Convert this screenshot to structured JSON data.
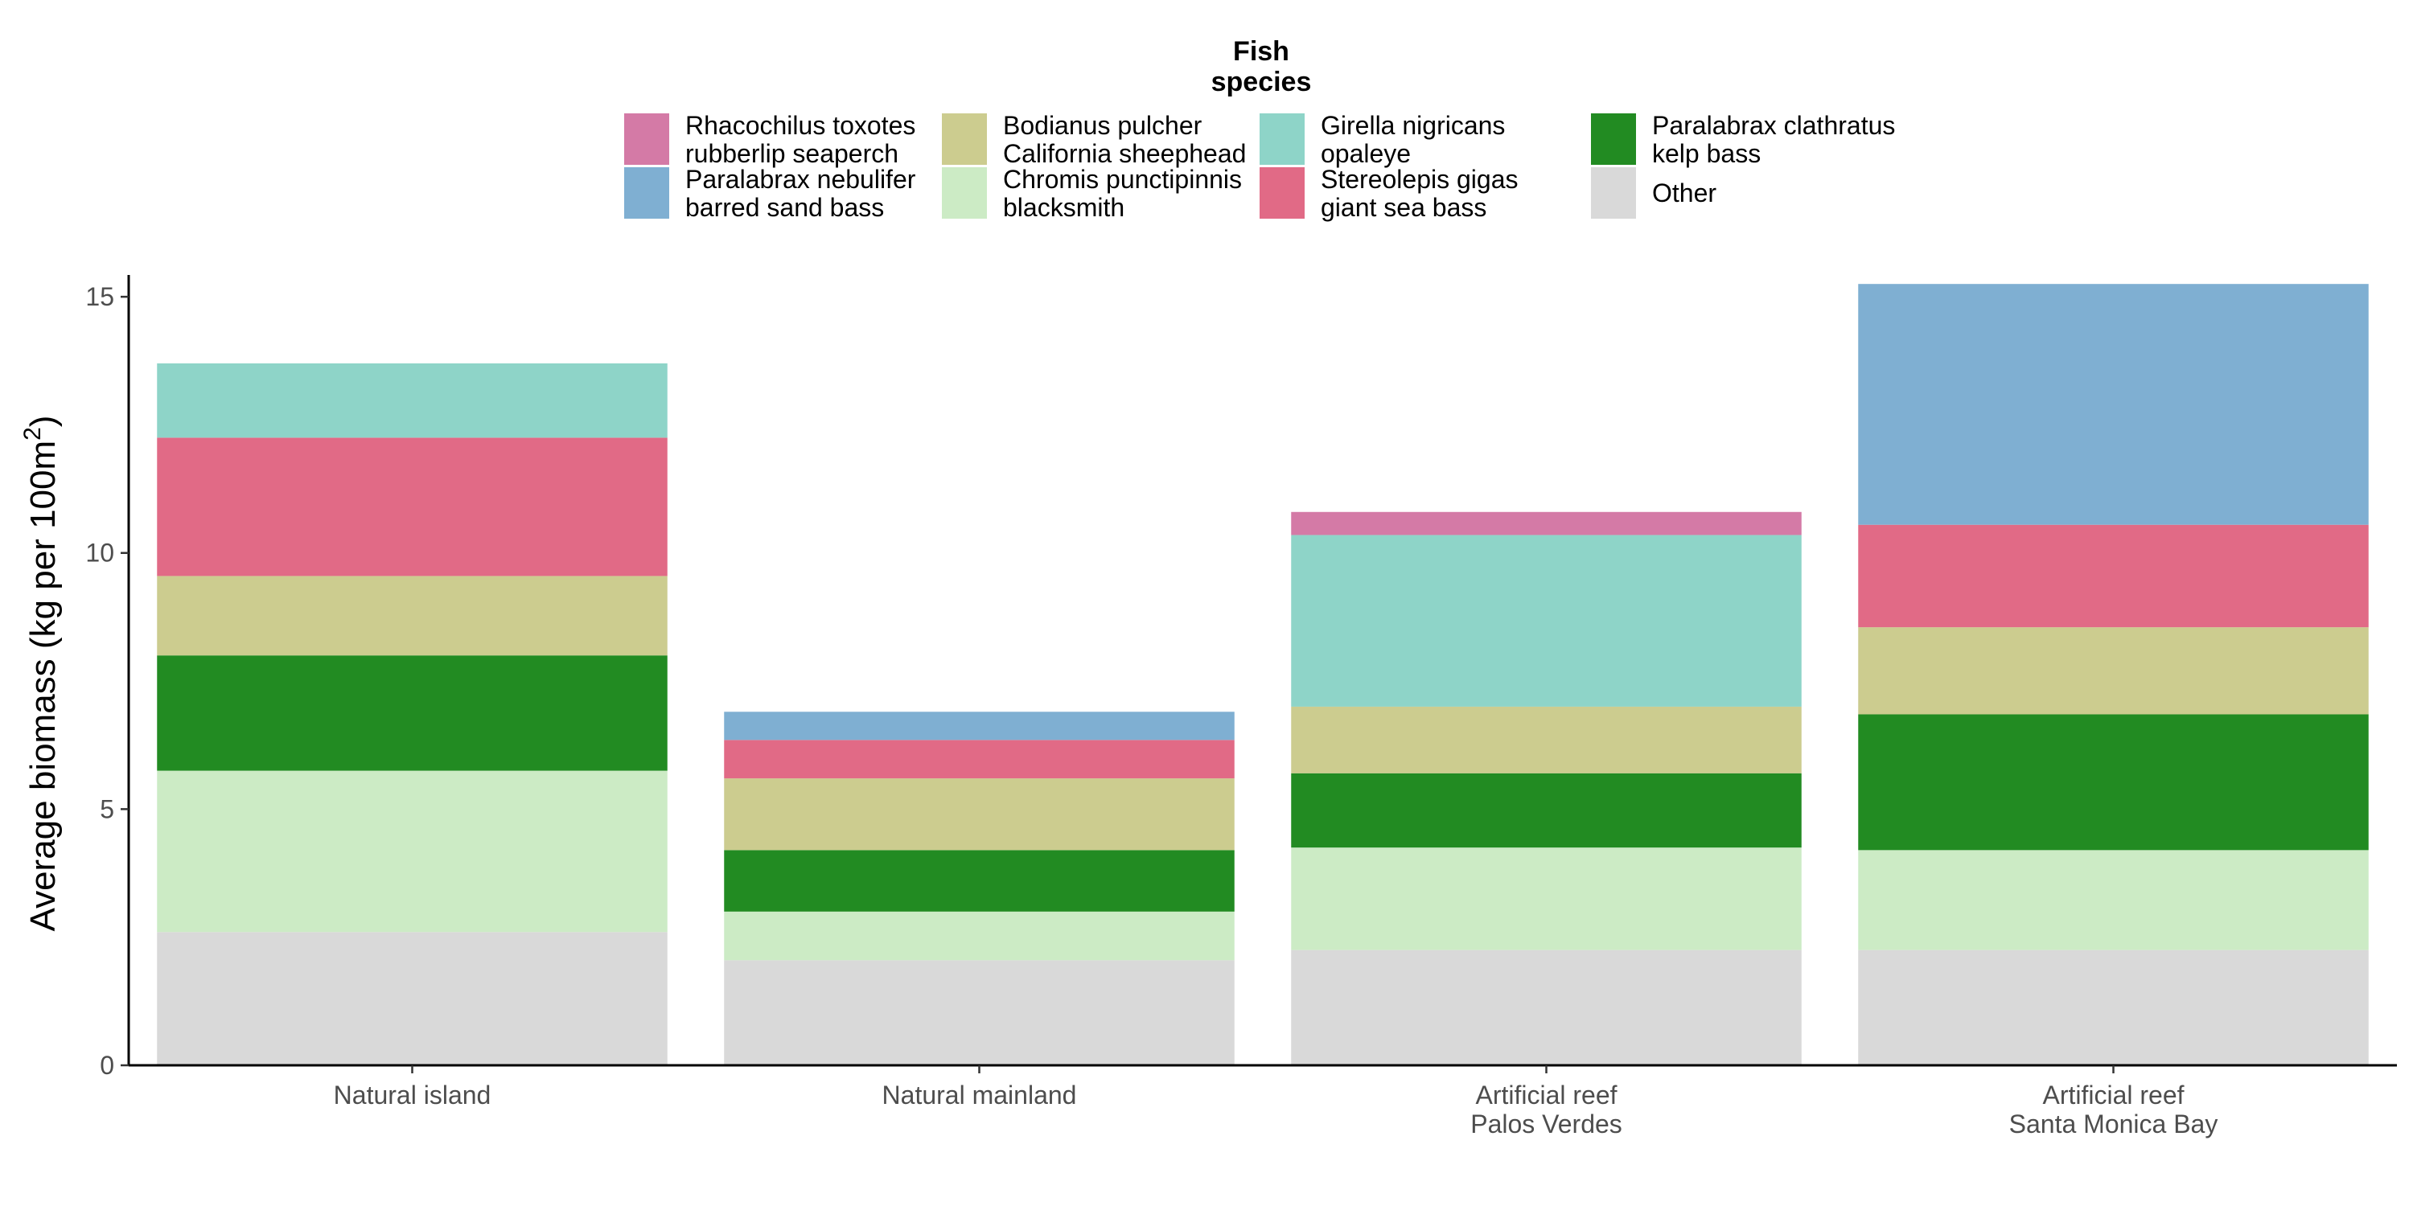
{
  "chart_data": {
    "type": "bar",
    "stacked": true,
    "legend_title": [
      "Fish",
      "species"
    ],
    "legend_position": "top",
    "ylabel": "Average biomass (kg per 100m",
    "ylabel_superscript": "2",
    "ylabel_close": ")",
    "ylim": [
      0,
      15.3
    ],
    "yticks": [
      0,
      5,
      10,
      15
    ],
    "grid": false,
    "categories": [
      [
        "Natural island"
      ],
      [
        "Natural mainland"
      ],
      [
        "Artificial reef",
        "Palos Verdes"
      ],
      [
        "Artificial reef",
        "Santa Monica Bay"
      ]
    ],
    "series": [
      {
        "name": [
          "Other"
        ],
        "color": "#D9D9D9",
        "values": [
          2.6,
          2.05,
          2.25,
          2.25
        ]
      },
      {
        "name": [
          "Chromis punctipinnis",
          "blacksmith"
        ],
        "color": "#CCEBC5",
        "values": [
          3.15,
          0.95,
          2.0,
          1.95
        ]
      },
      {
        "name": [
          "Paralabrax clathratus",
          "kelp bass"
        ],
        "color": "#228B22",
        "values": [
          2.25,
          1.2,
          1.45,
          2.65
        ]
      },
      {
        "name": [
          "Bodianus pulcher",
          "California sheephead"
        ],
        "color": "#CCCC8F",
        "values": [
          1.55,
          1.4,
          1.3,
          1.7
        ]
      },
      {
        "name": [
          "Stereolepis gigas",
          "giant sea bass"
        ],
        "color": "#E16A86",
        "values": [
          2.7,
          0.75,
          0.0,
          2.0
        ]
      },
      {
        "name": [
          "Girella nigricans",
          "opaleye"
        ],
        "color": "#8ED4C8",
        "values": [
          1.45,
          0.0,
          3.35,
          0.0
        ]
      },
      {
        "name": [
          "Paralabrax nebulifer",
          "barred sand bass"
        ],
        "color": "#7FAFD2",
        "values": [
          0.0,
          0.55,
          0.0,
          4.7
        ]
      },
      {
        "name": [
          "Rhacochilus toxotes",
          "rubberlip seaperch"
        ],
        "color": "#D47AA6",
        "values": [
          0.0,
          0.0,
          0.45,
          0.0
        ]
      }
    ],
    "legend_order": [
      7,
      6,
      3,
      1,
      5,
      4,
      2,
      0
    ]
  }
}
